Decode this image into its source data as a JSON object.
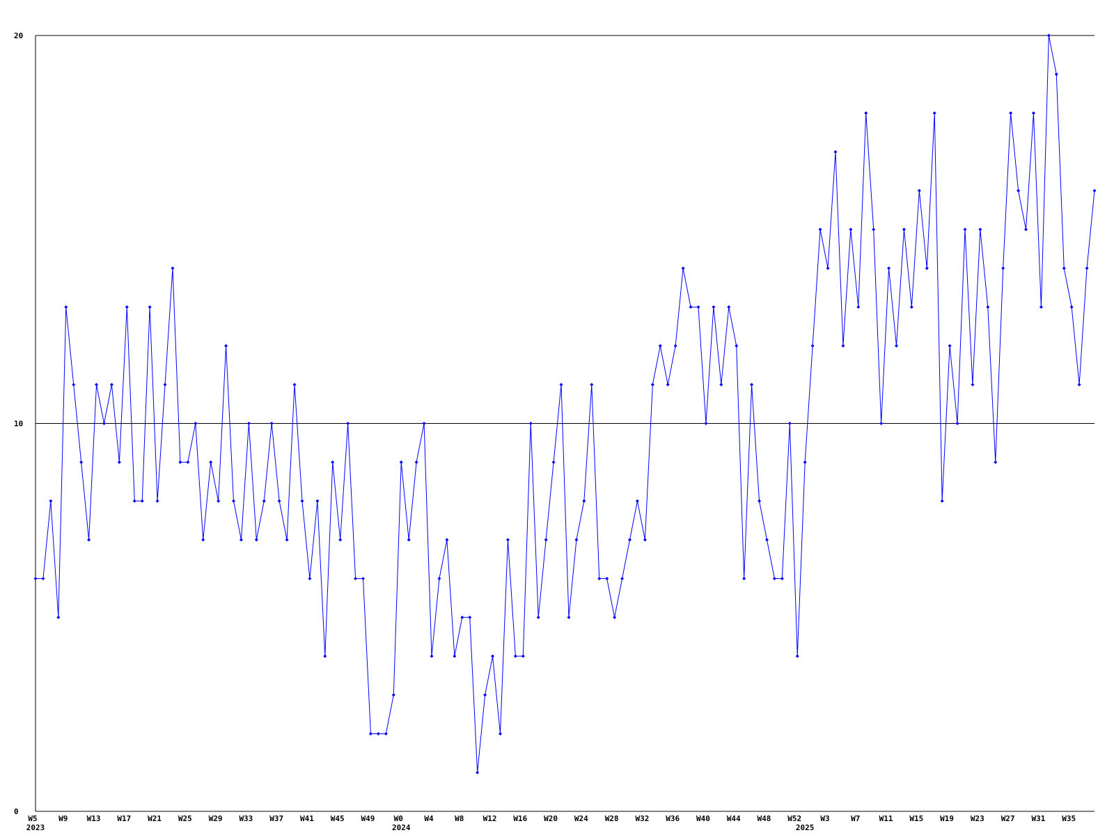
{
  "chart_data": {
    "type": "line",
    "categories": [
      "W5",
      null,
      null,
      null,
      "W9",
      null,
      null,
      null,
      "W13",
      null,
      null,
      null,
      "W17",
      null,
      null,
      null,
      "W21",
      null,
      null,
      null,
      "W25",
      null,
      null,
      null,
      "W29",
      null,
      null,
      null,
      "W33",
      null,
      null,
      null,
      "W37",
      null,
      null,
      null,
      "W41",
      null,
      null,
      null,
      "W45",
      null,
      null,
      null,
      "W49",
      null,
      null,
      null,
      "W0",
      null,
      null,
      null,
      "W4",
      null,
      null,
      null,
      "W8",
      null,
      null,
      null,
      "W12",
      null,
      null,
      null,
      "W16",
      null,
      null,
      null,
      "W20",
      null,
      null,
      null,
      "W24",
      null,
      null,
      null,
      "W28",
      null,
      null,
      null,
      "W32",
      null,
      null,
      null,
      "W36",
      null,
      null,
      null,
      "W40",
      null,
      null,
      null,
      "W44",
      null,
      null,
      null,
      "W48",
      null,
      null,
      null,
      "W52",
      null,
      null,
      null,
      "W3",
      null,
      null,
      null,
      "W7",
      null,
      null,
      null,
      "W11",
      null,
      null,
      null,
      "W15",
      null,
      null,
      null,
      "W19",
      null,
      null,
      null,
      "W23",
      null,
      null,
      null,
      "W27",
      null,
      null,
      null,
      "W31",
      null,
      null,
      null,
      "W35",
      null,
      null,
      null
    ],
    "years": [
      "2023",
      null,
      null,
      null,
      null,
      null,
      null,
      null,
      null,
      null,
      null,
      null,
      null,
      null,
      null,
      null,
      null,
      null,
      null,
      null,
      null,
      null,
      null,
      null,
      null,
      null,
      null,
      null,
      null,
      null,
      null,
      null,
      null,
      null,
      null,
      null,
      null,
      null,
      null,
      null,
      null,
      null,
      null,
      null,
      null,
      null,
      null,
      null,
      "2024",
      null,
      null,
      null,
      null,
      null,
      null,
      null,
      null,
      null,
      null,
      null,
      null,
      null,
      null,
      null,
      null,
      null,
      null,
      null,
      null,
      null,
      null,
      null,
      null,
      null,
      null,
      null,
      null,
      null,
      null,
      null,
      null,
      null,
      null,
      null,
      null,
      null,
      null,
      null,
      null,
      null,
      null,
      null,
      null,
      null,
      null,
      null,
      null,
      null,
      null,
      null,
      null,
      "2025",
      null,
      null,
      null,
      null,
      null,
      null,
      null,
      null,
      null,
      null,
      null,
      null,
      null,
      null,
      null,
      null,
      null,
      null,
      null,
      null,
      null,
      null,
      null,
      null,
      null,
      null,
      null,
      null,
      null,
      null,
      null,
      null,
      null,
      null,
      null,
      null,
      null
    ],
    "series": [
      {
        "color": "#0000ff",
        "values": [
          6,
          6,
          8,
          5,
          13,
          11,
          9,
          7,
          11,
          10,
          11,
          9,
          13,
          8,
          8,
          13,
          8,
          11,
          14,
          9,
          9,
          10,
          7,
          9,
          8,
          12,
          8,
          7,
          10,
          7,
          8,
          10,
          8,
          7,
          11,
          8,
          6,
          8,
          4,
          9,
          7,
          10,
          6,
          6,
          2,
          2,
          2,
          3,
          9,
          7,
          9,
          10,
          4,
          6,
          7,
          4,
          5,
          5,
          1,
          3,
          4,
          2,
          7,
          4,
          4,
          10,
          5,
          7,
          9,
          11,
          5,
          7,
          8,
          11,
          6,
          6,
          5,
          6,
          7,
          8,
          7,
          11,
          12,
          11,
          12,
          14,
          13,
          13,
          10,
          13,
          11,
          13,
          12,
          6,
          11,
          8,
          7,
          6,
          6,
          10,
          4,
          9,
          12,
          15,
          14,
          17,
          12,
          15,
          13,
          18,
          15,
          10,
          14,
          12,
          15,
          13,
          16,
          14,
          18,
          8,
          12,
          10,
          15,
          11,
          15,
          13,
          9,
          14,
          18,
          16,
          15,
          18,
          13,
          20,
          19,
          14,
          13,
          11,
          14,
          16
        ]
      }
    ],
    "ylim": [
      0,
      20
    ],
    "yticks": [
      0,
      10,
      20
    ],
    "grid": true
  }
}
